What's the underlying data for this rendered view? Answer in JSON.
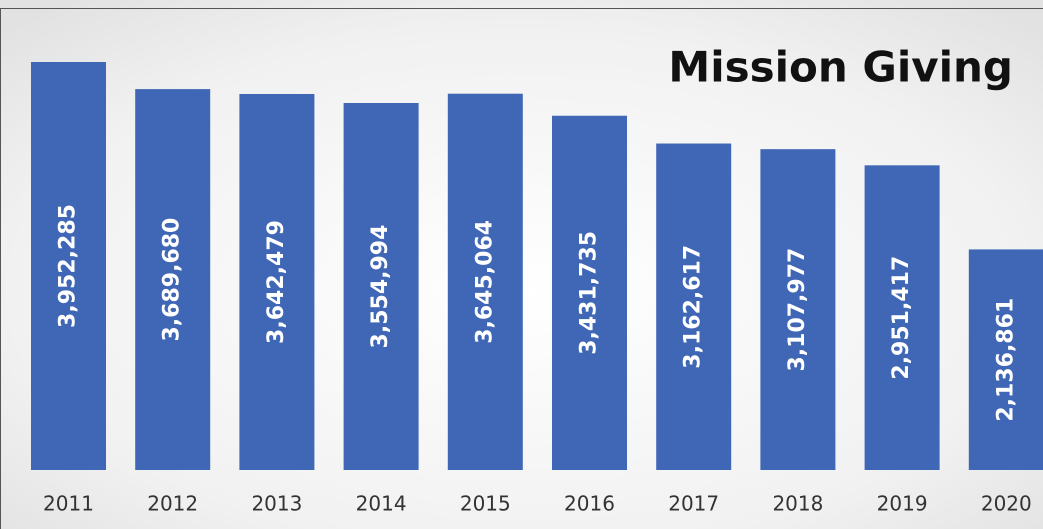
{
  "chart_data": {
    "type": "bar",
    "title": "Mission Giving",
    "categories": [
      "2011",
      "2012",
      "2013",
      "2014",
      "2015",
      "2016",
      "2017",
      "2018",
      "2019",
      "2020"
    ],
    "values": [
      3952285,
      3689680,
      3642479,
      3554994,
      3645064,
      3431735,
      3162617,
      3107977,
      2951417,
      2136861
    ],
    "value_labels": [
      "3,952,285",
      "3,689,680",
      "3,642,479",
      "3,554,994",
      "3,645,064",
      "3,431,735",
      "3,162,617",
      "3,107,977",
      "2,951,417",
      "2,136,861"
    ],
    "color": "#3f67b6"
  }
}
